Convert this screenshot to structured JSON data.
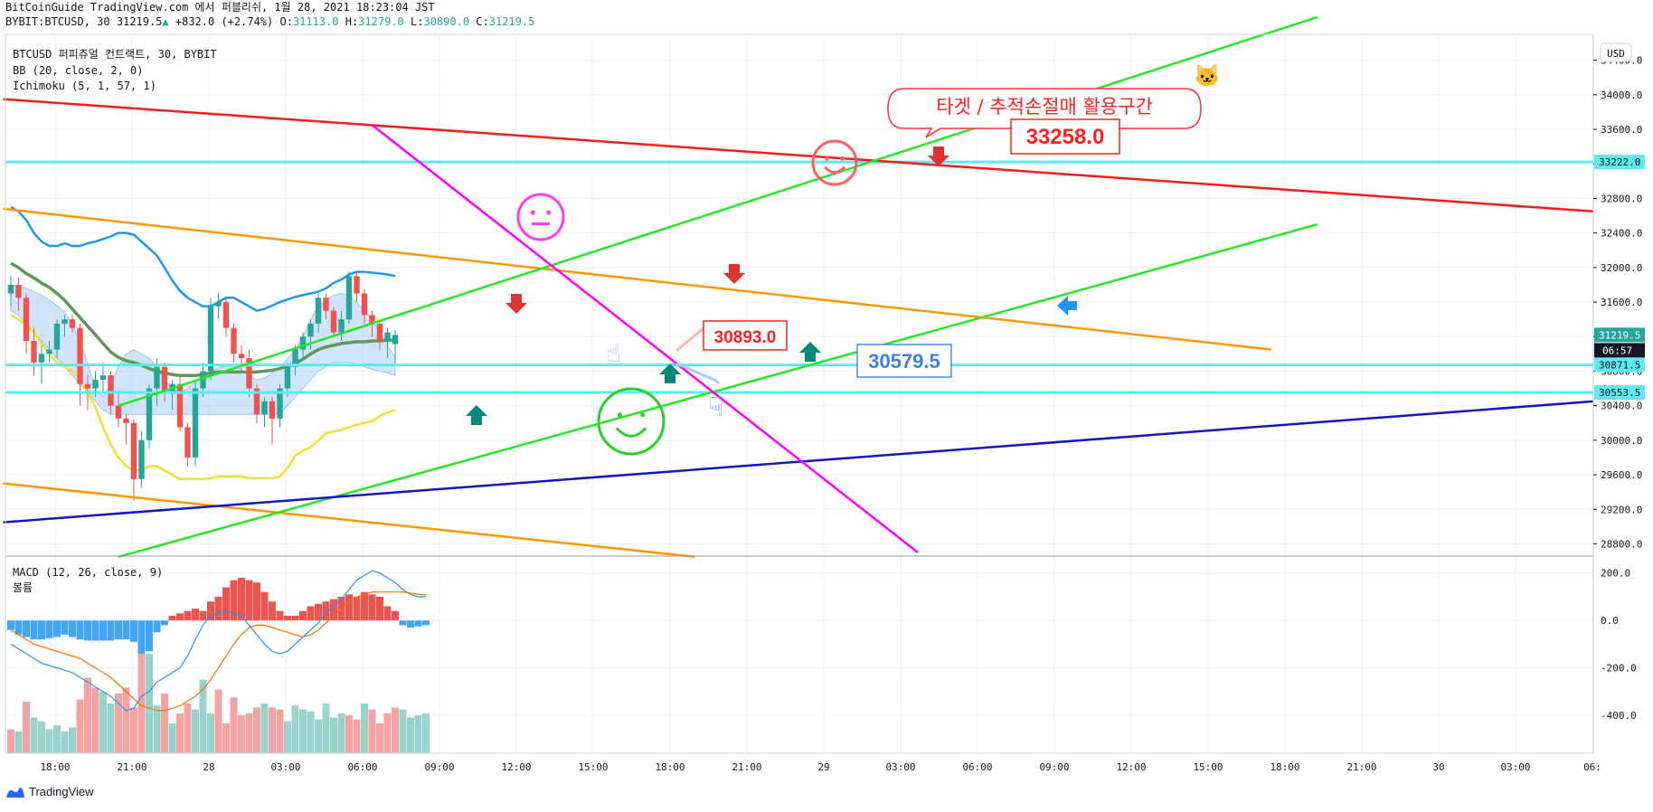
{
  "header": {
    "line1": "BitCoinGuide TradingView.com 에서 퍼블리쉬, 1월 28, 2021 18:23:04 JST",
    "symbol": "BYBIT:BTCUSD, 30",
    "last": "31219.5",
    "change": "+832.0 (+2.74%)",
    "o": "31113.0",
    "h": "31279.0",
    "l": "30890.0",
    "c": "31219.5"
  },
  "legend": {
    "main": "BTCUSD 퍼피츄얼 컨트랙트, 30, BYBIT",
    "bb": "BB (20, close, 2, 0)",
    "ichimoku": "Ichimoku (5, 1, 57, 1)",
    "macd": "MACD (12, 26, close, 9)",
    "volume": "볼륨"
  },
  "currency_button": "USD",
  "footer_brand": "TradingView",
  "annotations": {
    "callout": "타겟 / 추적손절매 활용구간",
    "target_label": "33258.0",
    "level_red": "30893.0",
    "level_blue": "30579.5"
  },
  "colors": {
    "up": "#26a69a",
    "down": "#ef5350",
    "bb": "#2196f3",
    "bb_mid": "#5b9a5b",
    "conversion": "#f0e030",
    "trend_red": "#ff1a1a",
    "trend_orange": "#ff9800",
    "trend_green": "#27e627",
    "trend_blue": "#1515c8",
    "trend_magenta": "#ff00ff",
    "hline": "#5ee8f0",
    "cloud": "#a9cef5"
  },
  "chart_data": [
    {
      "type": "candlestick",
      "title": "BYBIT:BTCUSD, 30",
      "price_axis": [
        28800,
        29200,
        29600,
        30000,
        30400,
        30800,
        31200,
        31600,
        32000,
        32400,
        32800,
        33200,
        33600,
        34000,
        34400
      ],
      "price_axis_labels": [
        "28800.0",
        "29200.0",
        "29600.0",
        "30000.0",
        "30400.0",
        "30800.0",
        "31200.0",
        "31600.0",
        "32000.0",
        "32400.0",
        "32800.0",
        "33200.0",
        "33600.0",
        "34000.0",
        "34400.0"
      ],
      "ylim": [
        28700,
        34700
      ],
      "time_axis_labels": [
        "18:00",
        "21:00",
        "28",
        "03:00",
        "06:00",
        "09:00",
        "12:00",
        "15:00",
        "18:00",
        "21:00",
        "29",
        "03:00",
        "06:00",
        "09:00",
        "12:00",
        "15:00",
        "18:00",
        "21:00",
        "30",
        "03:00",
        "06:"
      ],
      "price_tags": [
        {
          "value": 33222.0,
          "label": "33222.0",
          "color": "#5ee8f0"
        },
        {
          "value": 31219.5,
          "label": "31219.5",
          "color": "#26a69a"
        },
        {
          "value": 30871.5,
          "label": "30871.5",
          "color": "#5ee8f0"
        },
        {
          "value": 30553.5,
          "label": "30553.5",
          "color": "#5ee8f0"
        }
      ],
      "countdown": "06:57",
      "candles": [
        [
          31700,
          31900,
          31550,
          31800
        ],
        [
          31800,
          31880,
          31500,
          31650
        ],
        [
          31650,
          31700,
          31000,
          31150
        ],
        [
          31150,
          31300,
          30750,
          30900
        ],
        [
          30900,
          31100,
          30650,
          31000
        ],
        [
          31000,
          31150,
          30900,
          31050
        ],
        [
          31050,
          31400,
          30950,
          31350
        ],
        [
          31350,
          31450,
          31200,
          31400
        ],
        [
          31400,
          31450,
          31250,
          31300
        ],
        [
          31300,
          31350,
          30400,
          30650
        ],
        [
          30650,
          30750,
          30350,
          30600
        ],
        [
          30600,
          30800,
          30500,
          30700
        ],
        [
          30700,
          30900,
          30550,
          30750
        ],
        [
          30750,
          30800,
          30300,
          30400
        ],
        [
          30400,
          30550,
          30150,
          30250
        ],
        [
          30250,
          30300,
          29950,
          30200
        ],
        [
          30200,
          30250,
          29300,
          29550
        ],
        [
          29550,
          30100,
          29450,
          30000
        ],
        [
          30000,
          30650,
          29900,
          30600
        ],
        [
          30600,
          30950,
          30400,
          30850
        ],
        [
          30850,
          30900,
          30450,
          30550
        ],
        [
          30550,
          30700,
          30350,
          30650
        ],
        [
          30650,
          30750,
          30100,
          30150
        ],
        [
          30150,
          30200,
          29700,
          29800
        ],
        [
          29800,
          30700,
          29700,
          30600
        ],
        [
          30600,
          30900,
          30500,
          30800
        ],
        [
          30800,
          31650,
          30700,
          31550
        ],
        [
          31550,
          31700,
          31400,
          31600
        ],
        [
          31600,
          31650,
          31200,
          31300
        ],
        [
          31300,
          31350,
          30900,
          31000
        ],
        [
          31000,
          31100,
          30800,
          30950
        ],
        [
          30950,
          31050,
          30500,
          30600
        ],
        [
          30600,
          30650,
          30200,
          30300
        ],
        [
          30300,
          30500,
          30150,
          30450
        ],
        [
          30450,
          30500,
          29950,
          30250
        ],
        [
          30250,
          30650,
          30150,
          30600
        ],
        [
          30600,
          30900,
          30500,
          30850
        ],
        [
          30850,
          31100,
          30750,
          31050
        ],
        [
          31050,
          31250,
          30950,
          31200
        ],
        [
          31200,
          31400,
          31050,
          31350
        ],
        [
          31350,
          31700,
          31250,
          31650
        ],
        [
          31650,
          31700,
          31400,
          31500
        ],
        [
          31500,
          31550,
          31200,
          31250
        ],
        [
          31250,
          31500,
          31150,
          31400
        ],
        [
          31400,
          31950,
          31350,
          31900
        ],
        [
          31900,
          31950,
          31600,
          31700
        ],
        [
          31700,
          31750,
          31350,
          31450
        ],
        [
          31450,
          31500,
          31200,
          31350
        ],
        [
          31350,
          31400,
          31050,
          31150
        ],
        [
          31150,
          31300,
          30950,
          31250
        ],
        [
          31113,
          31279,
          30890,
          31219.5
        ]
      ],
      "bollinger": {
        "upper": [
          32700,
          32650,
          32550,
          32400,
          32300,
          32250,
          32250,
          32280,
          32250,
          32250,
          32280,
          32300,
          32330,
          32360,
          32400,
          32400,
          32380,
          32300,
          32220,
          32140,
          32000,
          31850,
          31730,
          31650,
          31600,
          31550,
          31550,
          31600,
          31650,
          31650,
          31600,
          31550,
          31500,
          31520,
          31560,
          31600,
          31630,
          31660,
          31680,
          31700,
          31720,
          31760,
          31820,
          31860,
          31920,
          31950,
          31950,
          31940,
          31930,
          31920,
          31900
        ],
        "middle": [
          32050,
          32000,
          31930,
          31880,
          31820,
          31770,
          31700,
          31620,
          31520,
          31420,
          31320,
          31220,
          31120,
          31020,
          30960,
          30920,
          30900,
          30870,
          30830,
          30800,
          30780,
          30760,
          30750,
          30750,
          30750,
          30760,
          30780,
          30790,
          30790,
          30790,
          30790,
          30790,
          30790,
          30800,
          30810,
          30830,
          30860,
          30890,
          30940,
          31000,
          31050,
          31080,
          31100,
          31120,
          31130,
          31140,
          31140,
          31150,
          31150,
          31160,
          31160
        ]
      },
      "conversion_line": [
        31450,
        31400,
        31330,
        31250,
        31120,
        31000,
        30900,
        30850,
        30800,
        30700,
        30550,
        30380,
        30150,
        29950,
        29800,
        29700,
        29650,
        29650,
        29700,
        29700,
        29650,
        29600,
        29550,
        29550,
        29550,
        29550,
        29560,
        29580,
        29580,
        29580,
        29580,
        29560,
        29560,
        29560,
        29560,
        29580,
        29680,
        29820,
        29880,
        29920,
        30000,
        30080,
        30100,
        30120,
        30150,
        30180,
        30200,
        30220,
        30280,
        30320,
        30350
      ],
      "cloud": {
        "upper": [
          31800,
          31780,
          31760,
          31720,
          31680,
          31620,
          31560,
          31480,
          31350,
          31150,
          30880,
          30600,
          30500,
          30650,
          30850,
          31000,
          31050,
          31000,
          30950,
          30850,
          30700,
          30600,
          30550,
          30600,
          30680,
          30760,
          30800,
          30840,
          30860,
          30860,
          30820,
          30750,
          30700,
          30720,
          30780,
          30850,
          30940,
          31050,
          31200,
          31400,
          31550,
          31620,
          31680,
          31700,
          31680,
          31600,
          31500,
          31400,
          31250,
          31100,
          30950
        ],
        "lower": [
          31500,
          31450,
          31350,
          31250,
          31150,
          31050,
          30950,
          30850,
          30750,
          30650,
          30550,
          30450,
          30350,
          30300,
          30300,
          30300,
          30300,
          30300,
          30300,
          30300,
          30300,
          30300,
          30300,
          30300,
          30300,
          30300,
          30300,
          30300,
          30300,
          30300,
          30300,
          30300,
          30300,
          30300,
          30300,
          30300,
          30400,
          30500,
          30600,
          30700,
          30800,
          30850,
          30900,
          30900,
          30900,
          30880,
          30850,
          30820,
          30800,
          30780,
          30750
        ]
      },
      "trendlines": [
        {
          "color": "red",
          "from": [
            "bar -1",
            33950
          ],
          "to": [
            "right edge",
            32650
          ]
        },
        {
          "color": "orange",
          "from": [
            "bar -1",
            32680
          ],
          "to": [
            "bar 164",
            31050
          ]
        },
        {
          "color": "orange",
          "from": [
            "bar -1",
            29500
          ],
          "to": [
            "bar 89",
            28650
          ]
        },
        {
          "color": "green",
          "from": [
            "bar 14",
            30400
          ],
          "to": [
            "bar 170",
            34900
          ]
        },
        {
          "color": "green",
          "from": [
            "bar 14",
            28650
          ],
          "to": [
            "bar 170",
            32500
          ]
        },
        {
          "color": "blue",
          "from": [
            "bar -1",
            29050
          ],
          "to": [
            "right edge",
            30450
          ]
        },
        {
          "color": "magenta",
          "from": [
            "bar 47",
            33650
          ],
          "to": [
            "bar 118",
            28700
          ]
        }
      ],
      "horizontal_levels": [
        33222.0,
        30871.5,
        30553.5
      ]
    },
    {
      "type": "histogram",
      "title": "MACD (12, 26, close, 9)",
      "axis_labels": [
        "200.0",
        "0.0",
        "-200.0",
        "-400.0"
      ],
      "axis_values": [
        200,
        0,
        -200,
        -400
      ],
      "ylim": [
        -560,
        260
      ],
      "macd_histogram": [
        -40,
        -60,
        -70,
        -80,
        -80,
        -75,
        -70,
        -60,
        -70,
        -80,
        -85,
        -85,
        -85,
        -85,
        -80,
        -80,
        -90,
        -140,
        -130,
        -50,
        -20,
        20,
        30,
        40,
        50,
        40,
        80,
        100,
        140,
        170,
        180,
        170,
        160,
        120,
        80,
        40,
        20,
        20,
        40,
        60,
        70,
        80,
        90,
        100,
        110,
        100,
        120,
        110,
        100,
        60,
        40,
        -20,
        -30,
        -25,
        -20
      ],
      "macd_line": [
        -100,
        -120,
        -140,
        -160,
        -180,
        -190,
        -200,
        -210,
        -220,
        -240,
        -260,
        -280,
        -300,
        -320,
        -350,
        -380,
        -370,
        -320,
        -300,
        -260,
        -240,
        -220,
        -200,
        -150,
        -80,
        -20,
        20,
        30,
        40,
        30,
        20,
        -20,
        -60,
        -100,
        -130,
        -140,
        -130,
        -100,
        -70,
        -40,
        -10,
        30,
        60,
        90,
        130,
        170,
        190,
        210,
        200,
        180,
        160,
        130,
        110,
        100,
        100
      ],
      "signal_line": [
        -40,
        -60,
        -80,
        -100,
        -110,
        -120,
        -130,
        -140,
        -150,
        -160,
        -180,
        -200,
        -220,
        -240,
        -270,
        -300,
        -330,
        -360,
        -370,
        -380,
        -380,
        -370,
        -360,
        -340,
        -320,
        -290,
        -250,
        -200,
        -150,
        -100,
        -60,
        -30,
        -20,
        -20,
        -30,
        -40,
        -50,
        -60,
        -70,
        -60,
        -40,
        -10,
        20,
        50,
        80,
        100,
        110,
        120,
        120,
        120,
        120,
        120,
        115,
        110,
        108
      ],
      "volume": [
        120,
        110,
        260,
        180,
        160,
        120,
        140,
        110,
        130,
        270,
        380,
        330,
        310,
        250,
        300,
        330,
        230,
        570,
        500,
        240,
        300,
        150,
        200,
        250,
        220,
        370,
        200,
        320,
        150,
        280,
        190,
        200,
        230,
        250,
        230,
        220,
        160,
        240,
        220,
        210,
        170,
        250,
        180,
        200,
        190,
        170,
        250,
        220,
        150,
        200,
        230,
        220,
        180,
        190,
        200
      ],
      "volume_colors": [
        "r",
        "g",
        "r",
        "g",
        "g",
        "g",
        "g",
        "g",
        "g",
        "r",
        "r",
        "r",
        "g",
        "g",
        "r",
        "r",
        "r",
        "r",
        "g",
        "g",
        "r",
        "g",
        "r",
        "r",
        "g",
        "g",
        "g",
        "r",
        "r",
        "r",
        "r",
        "r",
        "r",
        "g",
        "r",
        "r",
        "g",
        "g",
        "g",
        "g",
        "g",
        "g",
        "g",
        "g",
        "r",
        "r",
        "g",
        "r",
        "r",
        "r",
        "r",
        "g",
        "g",
        "g",
        "g"
      ]
    }
  ]
}
